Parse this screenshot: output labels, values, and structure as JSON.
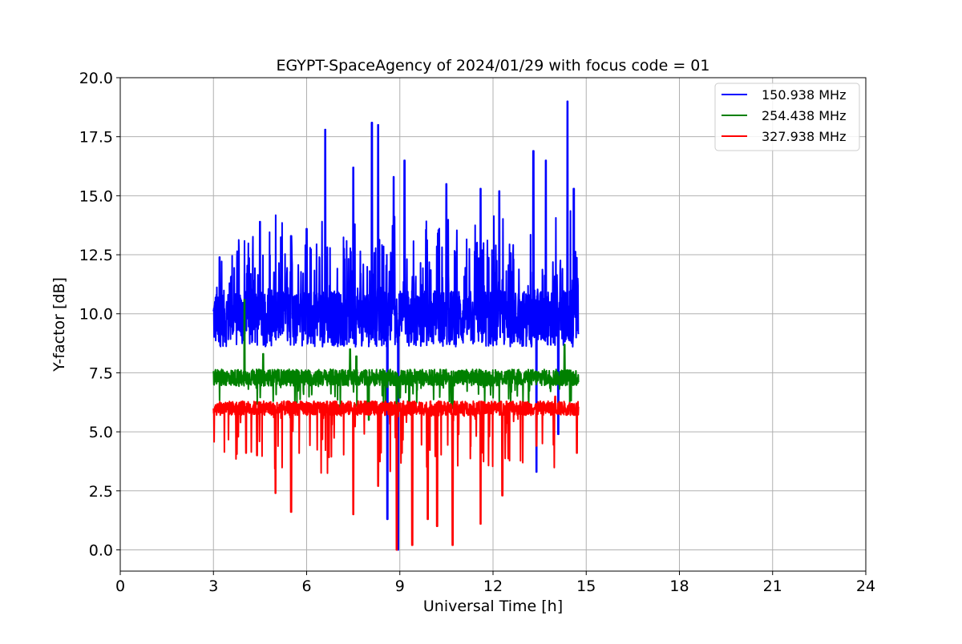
{
  "chart_data": {
    "type": "line",
    "title": "EGYPT-SpaceAgency of 2024/01/29 with focus code = 01",
    "xlabel": "Universal Time [h]",
    "ylabel": "Y-factor [dB]",
    "xlim": [
      0,
      24
    ],
    "ylim": [
      -0.9,
      20.0
    ],
    "xticks": [
      0,
      3,
      6,
      9,
      12,
      15,
      18,
      21,
      24
    ],
    "xtick_labels": [
      "0",
      "3",
      "6",
      "9",
      "12",
      "15",
      "18",
      "21",
      "24"
    ],
    "yticks": [
      0.0,
      2.5,
      5.0,
      7.5,
      10.0,
      12.5,
      15.0,
      17.5,
      20.0
    ],
    "ytick_labels": [
      "0.0",
      "2.5",
      "5.0",
      "7.5",
      "10.0",
      "12.5",
      "15.0",
      "17.5",
      "20.0"
    ],
    "grid": true,
    "legend_position": "top-right",
    "series": [
      {
        "name": "150.938 MHz",
        "color": "#0000ff",
        "baseline": 9.8,
        "noise": 1.2,
        "x_start": 3.0,
        "x_end": 14.75,
        "spikes": [
          [
            3.2,
            12.4
          ],
          [
            4.5,
            13.9
          ],
          [
            5.5,
            13.3
          ],
          [
            6.0,
            13.6
          ],
          [
            6.6,
            17.8
          ],
          [
            7.5,
            16.2
          ],
          [
            8.1,
            18.1
          ],
          [
            8.3,
            18.0
          ],
          [
            8.8,
            15.8
          ],
          [
            9.15,
            16.5
          ],
          [
            10.5,
            15.5
          ],
          [
            11.6,
            15.3
          ],
          [
            12.2,
            15.2
          ],
          [
            13.3,
            16.9
          ],
          [
            13.7,
            16.5
          ],
          [
            14.4,
            19.0
          ],
          [
            14.6,
            15.3
          ]
        ],
        "dips": [
          [
            8.6,
            1.3
          ],
          [
            8.95,
            0.0
          ],
          [
            13.4,
            3.3
          ],
          [
            14.1,
            4.9
          ]
        ]
      },
      {
        "name": "254.438 MHz",
        "color": "#008000",
        "baseline": 7.3,
        "noise": 0.35,
        "x_start": 3.0,
        "x_end": 14.75,
        "spikes": [
          [
            4.0,
            10.6
          ],
          [
            4.6,
            8.3
          ],
          [
            7.4,
            8.5
          ],
          [
            7.6,
            8.2
          ],
          [
            14.3,
            8.7
          ]
        ],
        "dips": [
          [
            8.0,
            5.5
          ],
          [
            8.9,
            5.2
          ],
          [
            9.3,
            5.8
          ],
          [
            10.7,
            6.0
          ]
        ]
      },
      {
        "name": "327.938 MHz",
        "color": "#ff0000",
        "baseline": 6.0,
        "noise": 0.3,
        "x_start": 3.0,
        "x_end": 14.75,
        "spikes": [
          [
            7.5,
            6.8
          ],
          [
            14.0,
            6.5
          ]
        ],
        "dips": [
          [
            4.05,
            4.1
          ],
          [
            4.4,
            4.0
          ],
          [
            5.0,
            2.4
          ],
          [
            5.5,
            1.6
          ],
          [
            7.5,
            1.5
          ],
          [
            8.3,
            2.7
          ],
          [
            8.9,
            0.0
          ],
          [
            9.4,
            0.2
          ],
          [
            9.9,
            1.3
          ],
          [
            10.2,
            1.0
          ],
          [
            10.7,
            0.2
          ],
          [
            11.6,
            1.1
          ],
          [
            12.3,
            2.3
          ],
          [
            13.4,
            4.4
          ],
          [
            14.7,
            4.1
          ]
        ]
      }
    ]
  }
}
